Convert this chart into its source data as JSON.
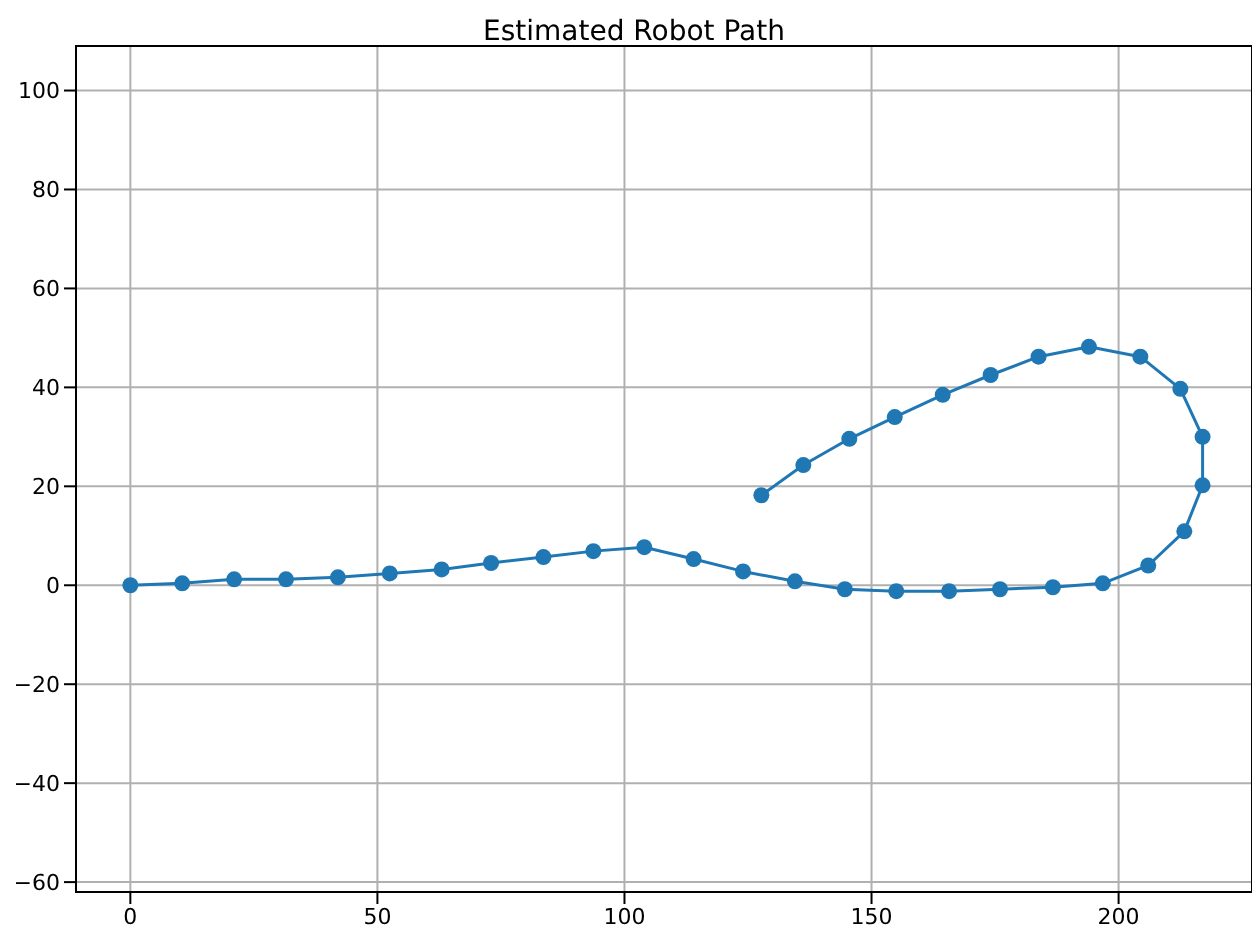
{
  "chart_data": {
    "type": "line",
    "title": "Estimated Robot Path",
    "x": [
      0,
      10.5,
      21,
      31.5,
      42,
      52.5,
      63,
      73,
      83.6,
      93.7,
      104,
      114,
      124,
      134.5,
      144.6,
      155,
      165.7,
      176,
      186.7,
      196.8,
      206,
      213.3,
      217,
      217,
      212.5,
      204.4,
      194,
      183.8,
      174.1,
      164.4,
      154.7,
      145.5,
      136.2,
      127.7
    ],
    "series": [
      {
        "color": "#1f77b4",
        "values": [
          0,
          0.4,
          1.2,
          1.2,
          1.6,
          2.4,
          3.2,
          4.5,
          5.7,
          6.9,
          7.7,
          5.3,
          2.8,
          0.8,
          -0.8,
          -1.2,
          -1.2,
          -0.8,
          -0.4,
          0.4,
          4,
          10.9,
          20.2,
          30,
          39.7,
          46.2,
          48.2,
          46.2,
          42.5,
          38.5,
          34,
          29.6,
          24.3,
          18.2
        ]
      }
    ],
    "xlim": [
      -11,
      227
    ],
    "ylim": [
      -62,
      109
    ],
    "xticks": [
      0,
      50,
      100,
      150,
      200
    ],
    "yticks": [
      -60,
      -40,
      -20,
      0,
      20,
      40,
      60,
      80,
      100
    ],
    "grid": true,
    "marker": "circle",
    "line_style": "solid"
  }
}
